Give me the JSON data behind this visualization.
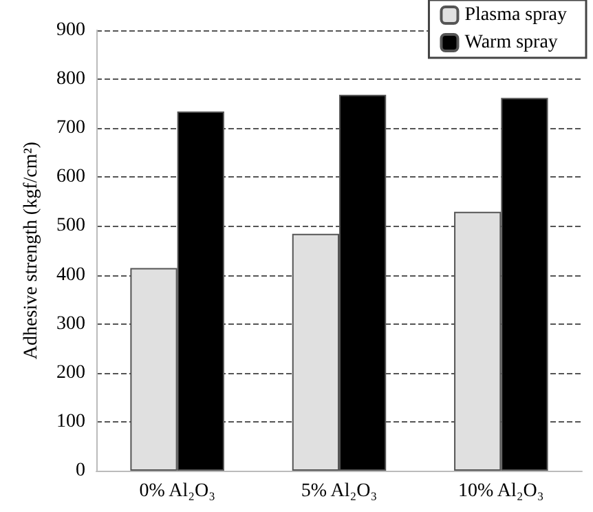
{
  "chart_data": {
    "type": "bar",
    "ylabel": "Adhesive strength (kgf/cm²)",
    "categories": [
      "0% Al₂O₃",
      "5% Al₂O₃",
      "10% Al₂O₃"
    ],
    "series": [
      {
        "name": "Plasma spray",
        "color": "#e0e0e0",
        "values": [
          414,
          484,
          529
        ]
      },
      {
        "name": "Warm spray",
        "color": "#000000",
        "values": [
          734,
          768,
          762
        ]
      }
    ],
    "ylim": [
      0,
      900
    ],
    "yticks": [
      0,
      100,
      200,
      300,
      400,
      500,
      600,
      700,
      800,
      900
    ],
    "grid": "y",
    "legend": "top right"
  }
}
